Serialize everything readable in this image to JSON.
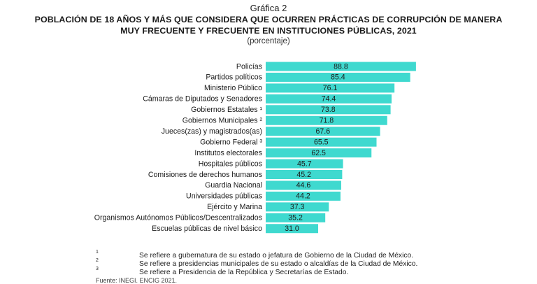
{
  "header": {
    "figure_label": "Gráfica 2",
    "title_line1": "POBLACIÓN DE 18 AÑOS Y MÁS QUE CONSIDERA QUE OCURREN PRÁCTICAS DE CORRUPCIÓN DE MANERA",
    "title_line2": "MUY FRECUENTE Y FRECUENTE EN INSTITUCIONES PÚBLICAS, 2021",
    "subtitle": "(porcentaje)"
  },
  "colors": {
    "bar": "#3fd9cf",
    "text": "#1a1a1a"
  },
  "chart_data": {
    "type": "bar",
    "orientation": "horizontal",
    "title": "POBLACIÓN DE 18 AÑOS Y MÁS QUE CONSIDERA QUE OCURREN PRÁCTICAS DE CORRUPCIÓN DE MANERA MUY FRECUENTE Y FRECUENTE EN INSTITUCIONES PÚBLICAS, 2021",
    "unit": "(porcentaje)",
    "categories": [
      "Policías",
      "Partidos políticos",
      "Ministerio Público",
      "Cámaras de Diputados y Senadores",
      "Gobiernos Estatales ¹",
      "Gobiernos Municipales ²",
      "Jueces(zas) y magistrados(as)",
      "Gobierno Federal ³",
      "Institutos electorales",
      "Hospitales públicos",
      "Comisiones de derechos humanos",
      "Guardia Nacional",
      "Universidades públicas",
      "Ejército y Marina",
      "Organismos Autónomos Públicos/Descentralizados",
      "Escuelas públicas de nivel básico"
    ],
    "values": [
      88.8,
      85.4,
      76.1,
      74.4,
      73.8,
      71.8,
      67.6,
      65.5,
      62.5,
      45.7,
      45.2,
      44.6,
      44.2,
      37.3,
      35.2,
      31.0
    ],
    "value_labels": [
      "88.8",
      "85.4",
      "76.1",
      "74.4",
      "73.8",
      "71.8",
      "67.6",
      "65.5",
      "62.5",
      "45.7",
      "45.2",
      "44.6",
      "44.2",
      "37.3",
      "35.2",
      "31.0"
    ],
    "grid": false,
    "legend": "none"
  },
  "notes": [
    {
      "mark": "1",
      "text": "Se refiere a gubernatura de su estado o jefatura de Gobierno de la Ciudad de México."
    },
    {
      "mark": "2",
      "text": "Se refiere a presidencias municipales de su estado o alcaldías de la Ciudad de México."
    },
    {
      "mark": "3",
      "text": "Se refiere a Presidencia de la República y Secretarías de Estado."
    }
  ],
  "source": "Fuente: INEGI. ENCIG 2021."
}
